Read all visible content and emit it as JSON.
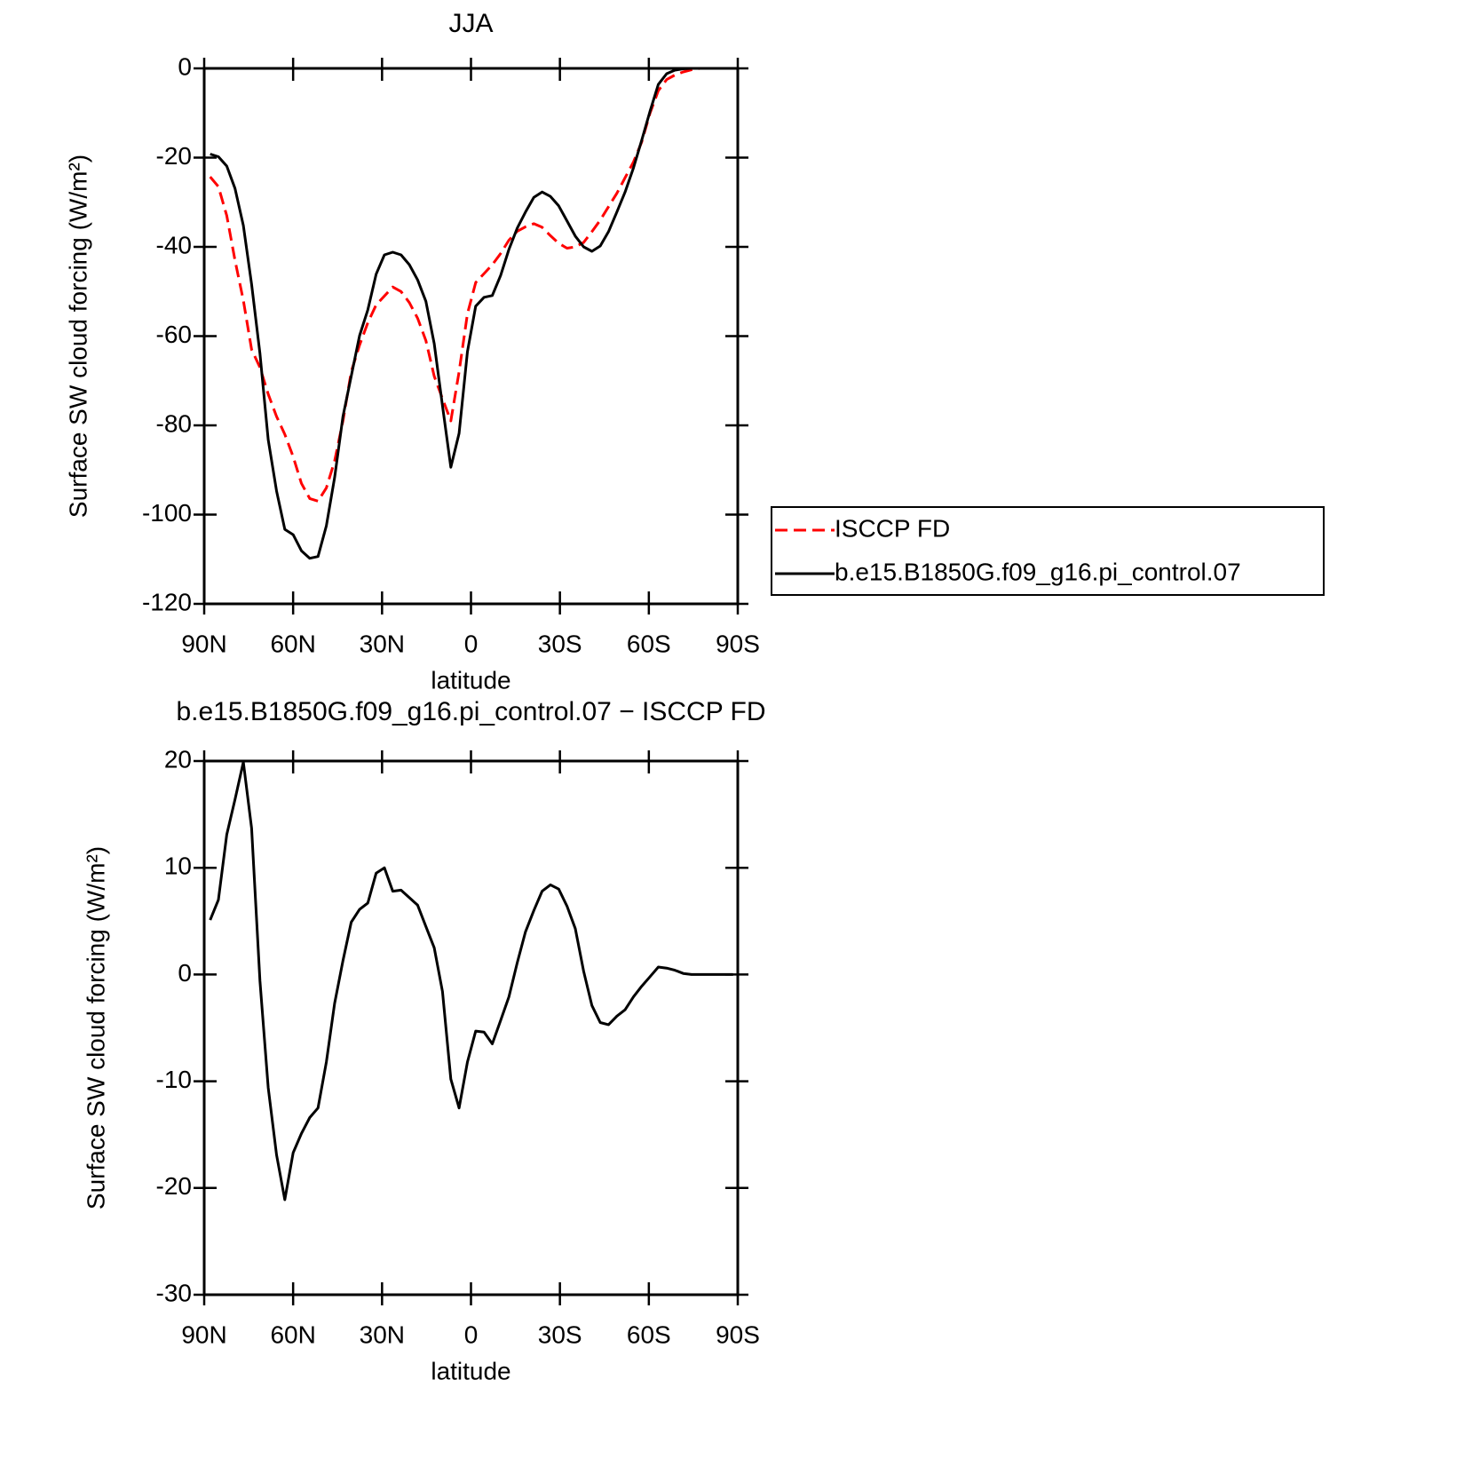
{
  "chart_data": [
    {
      "type": "line",
      "title": "JJA",
      "xlabel": "latitude",
      "ylabel": "Surface SW cloud forcing (W/m²)",
      "x": [
        88.0,
        85.2,
        82.4,
        79.6,
        76.8,
        74.0,
        71.2,
        68.4,
        65.6,
        62.8,
        60.0,
        57.2,
        54.4,
        51.6,
        48.8,
        46.0,
        43.2,
        40.4,
        37.6,
        34.8,
        32.0,
        29.2,
        26.4,
        23.6,
        20.8,
        18.0,
        15.2,
        12.4,
        9.6,
        6.8,
        4.0,
        1.2,
        -1.6,
        -4.4,
        -7.2,
        -10.0,
        -12.8,
        -15.6,
        -18.4,
        -21.2,
        -24.0,
        -26.8,
        -29.6,
        -32.4,
        -35.2,
        -38.0,
        -40.8,
        -43.6,
        -46.4,
        -49.2,
        -52.0,
        -54.8,
        -57.6,
        -60.4,
        -63.2,
        -66.0,
        -68.8,
        -71.6,
        -74.4,
        -77.2,
        -80.0,
        -82.8,
        -85.6,
        -88.4
      ],
      "series": [
        {
          "name": "ISCCP FD",
          "color": "#ff0000",
          "linestyle": "dashed",
          "values": [
            -24.3,
            -26.5,
            -33,
            -43,
            -52,
            -63,
            -67,
            -73,
            -78,
            -82,
            -87,
            -93,
            -96.4,
            -97,
            -94,
            -88,
            -79,
            -68,
            -62,
            -57,
            -53,
            -51,
            -49,
            -50,
            -52.5,
            -56,
            -61,
            -69,
            -74,
            -79,
            -68,
            -55,
            -48,
            -46,
            -44,
            -41.5,
            -38.5,
            -36.5,
            -35.5,
            -34.8,
            -35.6,
            -37.5,
            -39.2,
            -40.3,
            -40,
            -39,
            -36.6,
            -34,
            -31,
            -28,
            -24.5,
            -21,
            -16.5,
            -10,
            -5,
            -2.5,
            -1.5,
            -0.8,
            -0.3,
            0,
            0,
            0,
            0,
            0
          ]
        },
        {
          "name": "b.e15.B1850G.f09_g16.pi_control.07",
          "color": "#000000",
          "linestyle": "solid",
          "values": [
            -19.2,
            -19.8,
            -21.9,
            -26.9,
            -35.2,
            -48.4,
            -63.9,
            -83.2,
            -94.7,
            -103.3,
            -104.5,
            -108.1,
            -109.8,
            -109.4,
            -102.5,
            -91.7,
            -78.0,
            -69.0,
            -59.9,
            -54.1,
            -46.1,
            -41.8,
            -41.2,
            -41.8,
            -44.0,
            -47.4,
            -52.2,
            -61.7,
            -75.6,
            -89.4,
            -81.8,
            -63.5,
            -53.3,
            -51.3,
            -50.9,
            -46.4,
            -40.6,
            -35.8,
            -32.2,
            -28.9,
            -27.7,
            -28.7,
            -30.8,
            -34.2,
            -37.6,
            -40.0,
            -41.0,
            -39.8,
            -36.6,
            -32.2,
            -27.7,
            -22.3,
            -16.1,
            -9.6,
            -3.6,
            -1.2,
            -0.4,
            -0.1,
            0,
            0,
            0,
            0,
            0,
            0
          ]
        }
      ],
      "xlim": [
        90,
        -90
      ],
      "xticks": [
        {
          "value": 90,
          "label": "90N"
        },
        {
          "value": 60,
          "label": "60N"
        },
        {
          "value": 30,
          "label": "30N"
        },
        0,
        {
          "value": -30,
          "label": "30S"
        },
        {
          "value": -60,
          "label": "60S"
        },
        {
          "value": -90,
          "label": "90S"
        }
      ],
      "ylim": [
        -120,
        0
      ],
      "yticks": [
        0,
        -20,
        -40,
        -60,
        -80,
        -100,
        -120
      ],
      "legend": "right"
    },
    {
      "type": "line",
      "title": "b.e15.B1850G.f09_g16.pi_control.07 − ISCCP FD",
      "xlabel": "latitude",
      "ylabel": "Surface SW cloud forcing (W/m²)",
      "x": [
        88.0,
        85.2,
        82.4,
        79.6,
        76.8,
        74.0,
        71.2,
        68.4,
        65.6,
        62.8,
        60.0,
        57.2,
        54.4,
        51.6,
        48.8,
        46.0,
        43.2,
        40.4,
        37.6,
        34.8,
        32.0,
        29.2,
        26.4,
        23.6,
        20.8,
        18.0,
        15.2,
        12.4,
        9.6,
        6.8,
        4.0,
        1.2,
        -1.6,
        -4.4,
        -7.2,
        -10.0,
        -12.8,
        -15.6,
        -18.4,
        -21.2,
        -24.0,
        -26.8,
        -29.6,
        -32.4,
        -35.2,
        -38.0,
        -40.8,
        -43.6,
        -46.4,
        -49.2,
        -52.0,
        -54.8,
        -57.6,
        -60.4,
        -63.2,
        -66.0,
        -68.8,
        -71.6,
        -74.4,
        -77.2,
        -80.0,
        -82.8,
        -85.6,
        -88.4
      ],
      "color": "#000000",
      "values": [
        5.1,
        7.0,
        13.1,
        16.4,
        19.9,
        13.7,
        -0.6,
        -10.6,
        -16.9,
        -21.1,
        -16.7,
        -14.9,
        -13.4,
        -12.5,
        -8.2,
        -2.7,
        1.3,
        4.9,
        6.1,
        6.7,
        9.5,
        10.0,
        7.8,
        7.9,
        7.2,
        6.5,
        4.5,
        2.5,
        -1.6,
        -9.8,
        -12.5,
        -8.2,
        -5.3,
        -5.4,
        -6.5,
        -4.3,
        -2.1,
        1.1,
        4.0,
        6.0,
        7.8,
        8.4,
        8.0,
        6.4,
        4.3,
        0.3,
        -2.9,
        -4.5,
        -4.7,
        -3.9,
        -3.3,
        -2.1,
        -1.1,
        -0.2,
        0.7,
        0.6,
        0.4,
        0.1,
        0,
        0,
        0,
        0,
        0,
        0
      ],
      "xlim": [
        90,
        -90
      ],
      "xticks": [
        {
          "value": 90,
          "label": "90N"
        },
        {
          "value": 60,
          "label": "60N"
        },
        {
          "value": 30,
          "label": "30N"
        },
        0,
        {
          "value": -30,
          "label": "30S"
        },
        {
          "value": -60,
          "label": "60S"
        },
        {
          "value": -90,
          "label": "90S"
        }
      ],
      "ylim": [
        -30,
        20
      ],
      "yticks": [
        20,
        10,
        0,
        -10,
        -20,
        -30
      ]
    }
  ]
}
